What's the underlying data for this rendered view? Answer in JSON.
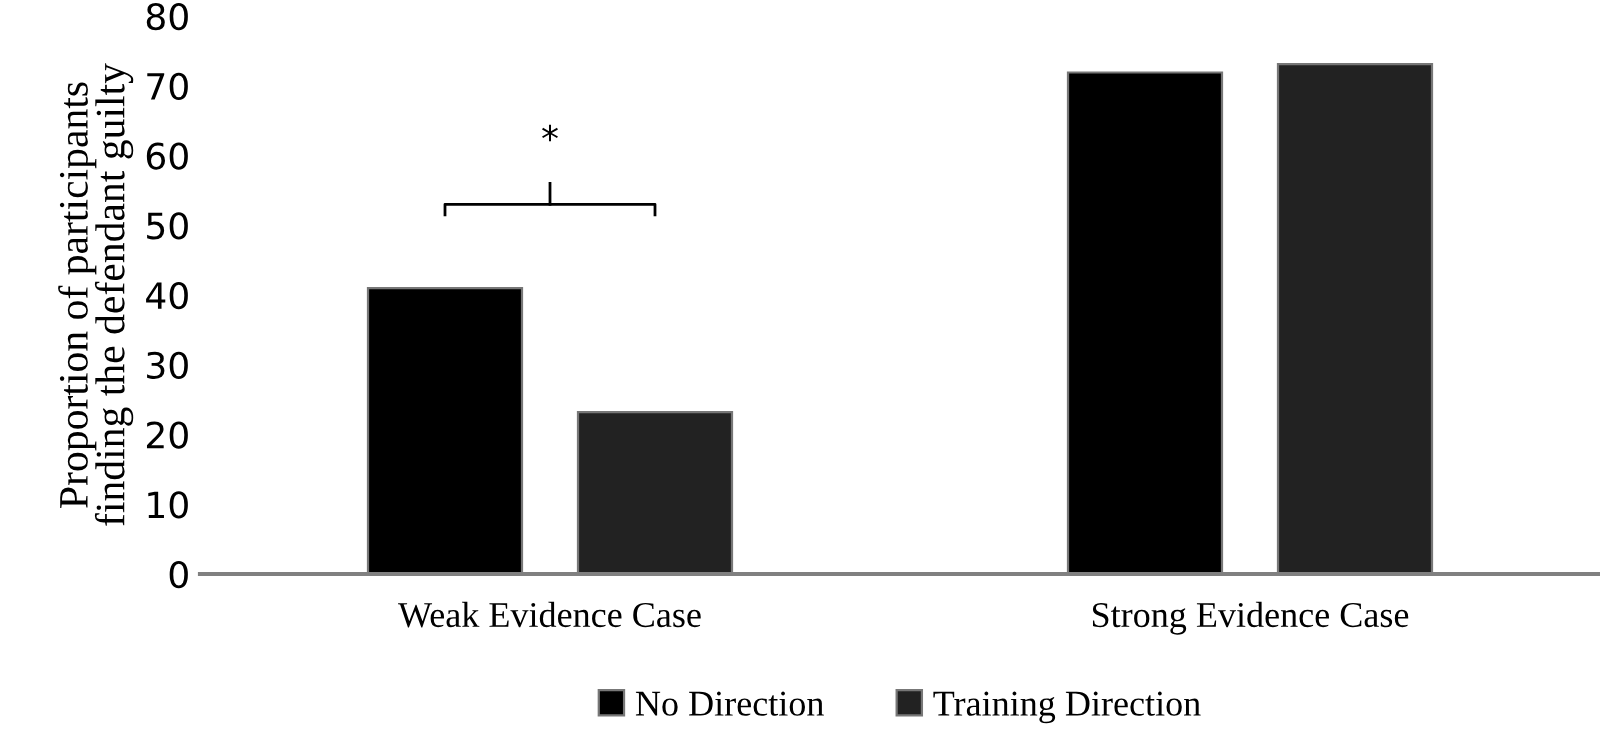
{
  "chart_data": {
    "type": "bar",
    "ylabel": "Proportion of participants\nfinding the defendant guilty",
    "categories": [
      "Weak Evidence Case",
      "Strong Evidence Case"
    ],
    "series": [
      {
        "name": "No Direction",
        "color": "#000000",
        "values": [
          41.0,
          71.9
        ]
      },
      {
        "name": "Training Direction",
        "color": "#222222",
        "values": [
          23.2,
          73.1
        ]
      }
    ],
    "ylim": [
      0,
      80
    ],
    "yticks": [
      0,
      10,
      20,
      30,
      40,
      50,
      60,
      70,
      80
    ],
    "grid": false,
    "legend": "bottom",
    "annotations": [
      "*"
    ]
  }
}
